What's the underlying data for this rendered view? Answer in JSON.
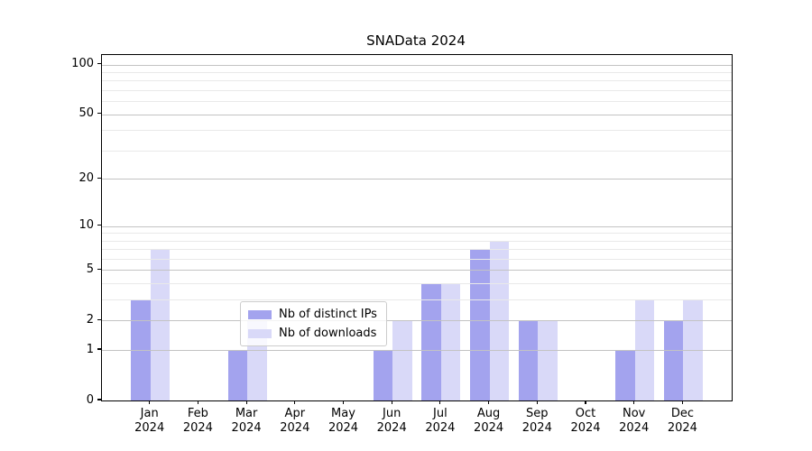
{
  "chart_data": {
    "type": "bar",
    "title": "SNAData 2024",
    "categories": [
      "Jan",
      "Feb",
      "Mar",
      "Apr",
      "May",
      "Jun",
      "Jul",
      "Aug",
      "Sep",
      "Oct",
      "Nov",
      "Dec"
    ],
    "category_year_label": "2024",
    "series": [
      {
        "name": "Nb of distinct IPs",
        "color": "#a3a3ee",
        "values": [
          3,
          0,
          1,
          0,
          0,
          1,
          4,
          7,
          2,
          0,
          1,
          2
        ]
      },
      {
        "name": "Nb of downloads",
        "color": "#d9d9f8",
        "values": [
          7,
          0,
          2,
          0,
          0,
          2,
          4,
          8,
          2,
          0,
          3,
          3
        ]
      }
    ],
    "xlabel": "",
    "ylabel": "",
    "y_scale": "log10(1+v)",
    "y_ticks": [
      0,
      1,
      2,
      5,
      10,
      20,
      50,
      100
    ],
    "y_minor_gridlines": [
      3,
      4,
      6,
      7,
      8,
      9,
      30,
      40,
      60,
      70,
      80,
      90
    ],
    "ylim_top": 114,
    "grid": "on",
    "legend_position": "lower center",
    "colors": {
      "spine": "#000000",
      "grid_major": "#c3c3c3",
      "grid_minor": "#e9e9e9",
      "background": "#ffffff"
    }
  }
}
